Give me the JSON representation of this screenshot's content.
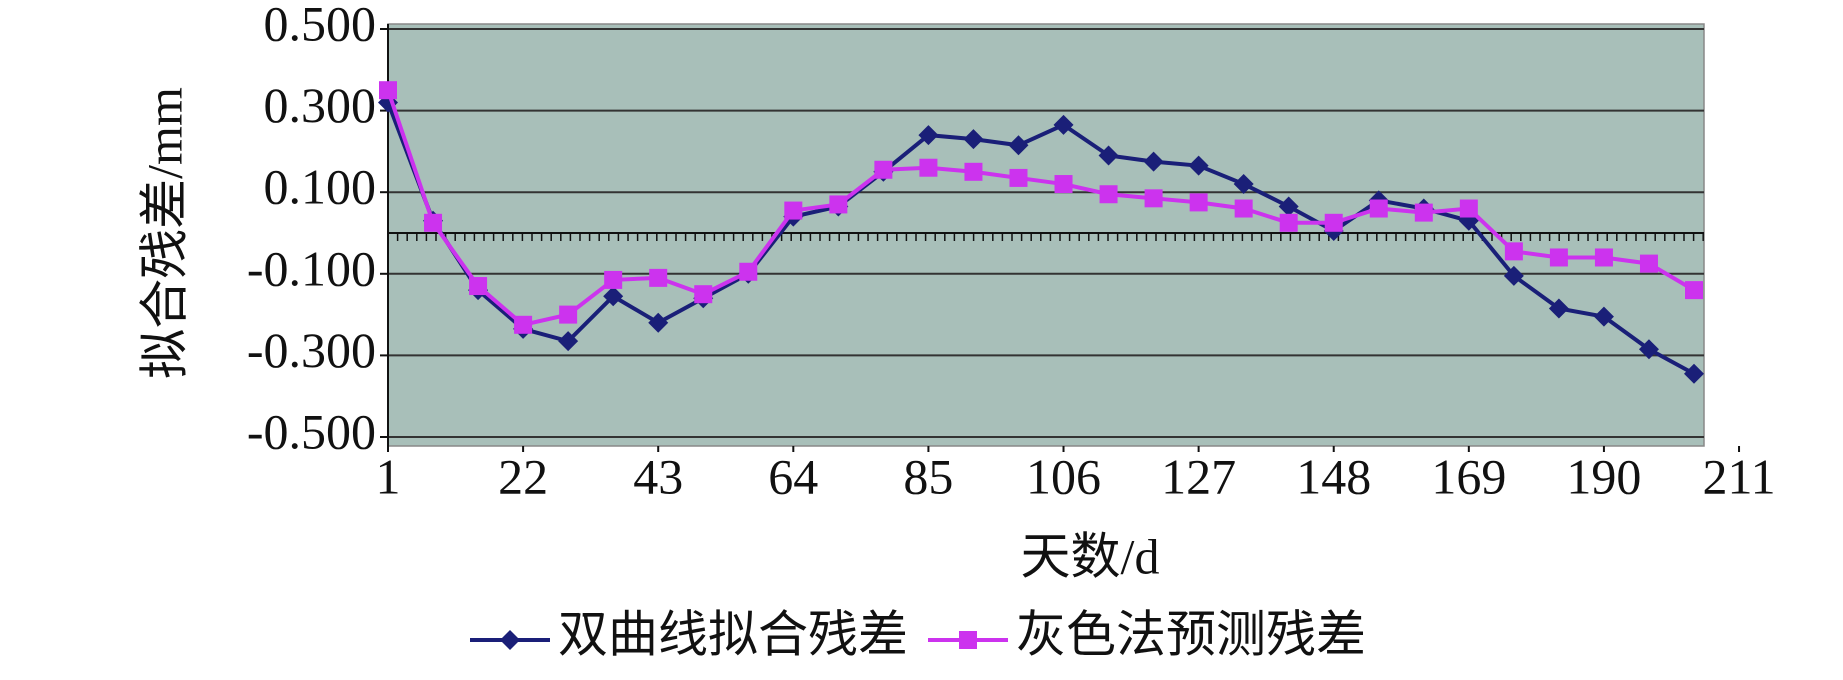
{
  "chart_data": {
    "type": "line",
    "x_label": "天数/d",
    "y_label": "拟合残差/mm",
    "x": [
      1,
      8,
      15,
      22,
      29,
      36,
      43,
      50,
      57,
      64,
      71,
      78,
      85,
      92,
      99,
      106,
      113,
      120,
      127,
      134,
      141,
      148,
      155,
      162,
      169,
      176,
      183,
      190,
      197,
      204
    ],
    "series": [
      {
        "name": "双曲线拟合残差",
        "color": "#1a1f78",
        "marker": "diamond",
        "values": [
          0.32,
          0.03,
          -0.14,
          -0.235,
          -0.265,
          -0.155,
          -0.22,
          -0.16,
          -0.1,
          0.04,
          0.065,
          0.15,
          0.24,
          0.23,
          0.215,
          0.265,
          0.19,
          0.175,
          0.165,
          0.12,
          0.065,
          0.005,
          0.08,
          0.06,
          0.03,
          -0.105,
          -0.185,
          -0.205,
          -0.285,
          -0.345
        ]
      },
      {
        "name": "灰色法预测残差",
        "color": "#cc33ee",
        "marker": "square",
        "values": [
          0.35,
          0.025,
          -0.13,
          -0.225,
          -0.2,
          -0.115,
          -0.11,
          -0.15,
          -0.095,
          0.055,
          0.07,
          0.155,
          0.16,
          0.15,
          0.135,
          0.12,
          0.095,
          0.085,
          0.075,
          0.06,
          0.025,
          0.025,
          0.06,
          0.05,
          0.06,
          -0.045,
          -0.06,
          -0.06,
          -0.075,
          -0.14
        ]
      }
    ],
    "xlim": [
      1,
      204
    ],
    "xticks": [
      1,
      22,
      43,
      64,
      85,
      106,
      127,
      148,
      169,
      190,
      211
    ],
    "ylim": [
      -0.5,
      0.5
    ],
    "yticks": [
      {
        "value": -0.5,
        "label": "-0.500"
      },
      {
        "value": -0.3,
        "label": "-0.300"
      },
      {
        "value": -0.1,
        "label": "-0.100"
      },
      {
        "value": 0.1,
        "label": "0.100"
      },
      {
        "value": 0.3,
        "label": "0.300"
      },
      {
        "value": 0.5,
        "label": "0.500"
      }
    ],
    "grid": true,
    "background": "#a8bfb9",
    "legend": "bottom"
  }
}
